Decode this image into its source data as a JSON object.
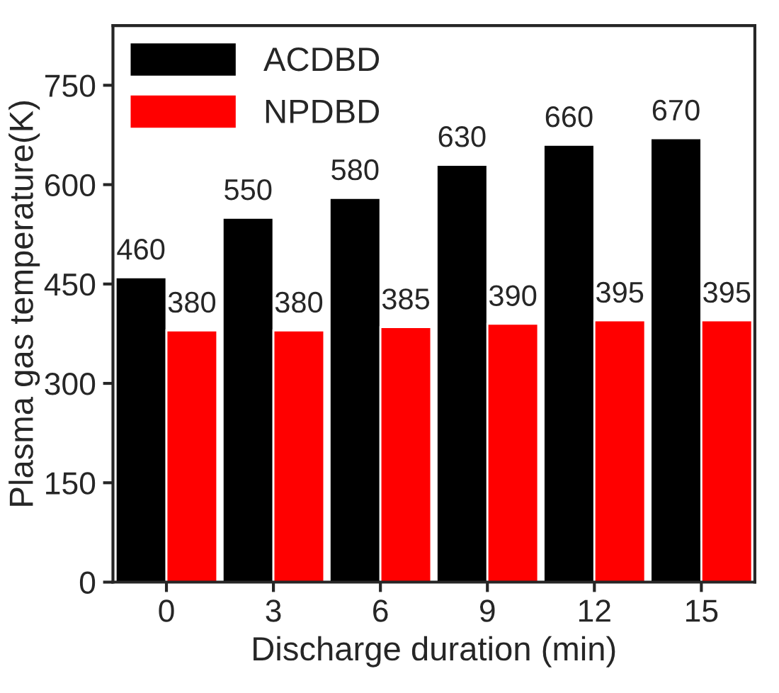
{
  "chart_data": {
    "type": "bar",
    "xlabel": "Discharge duration (min)",
    "ylabel": "Plasma gas temperature(K)",
    "categories": [
      "0",
      "3",
      "6",
      "9",
      "12",
      "15"
    ],
    "series": [
      {
        "name": "ACDBD",
        "color": "#000000",
        "values": [
          460,
          550,
          580,
          630,
          660,
          670
        ]
      },
      {
        "name": "NPDBD",
        "color": "#ff0000",
        "values": [
          380,
          380,
          385,
          390,
          395,
          395
        ]
      }
    ],
    "ylim": [
      0,
      840
    ],
    "yticks": [
      0,
      150,
      300,
      450,
      600,
      750
    ],
    "data_labels": true,
    "legend": "top left",
    "grid": false
  }
}
